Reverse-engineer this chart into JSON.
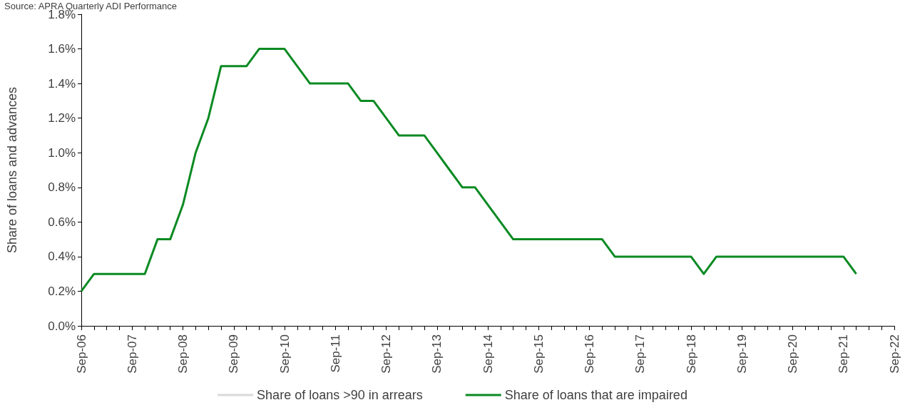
{
  "chart_data": {
    "type": "line",
    "ylabel": "Share of loans and advances",
    "annotations": [
      "Source: APRA Quarterly ADI Performance"
    ],
    "categories": [
      "Sep-06",
      null,
      null,
      null,
      "Sep-07",
      null,
      null,
      null,
      "Sep-08",
      null,
      null,
      null,
      "Sep-09",
      null,
      null,
      null,
      "Sep-10",
      null,
      null,
      null,
      "Sep-11",
      null,
      null,
      null,
      "Sep-12",
      null,
      null,
      null,
      "Sep-13",
      null,
      null,
      null,
      "Sep-14",
      null,
      null,
      null,
      "Sep-15",
      null,
      null,
      null,
      "Sep-16",
      null,
      null,
      null,
      "Sep-17",
      null,
      null,
      null,
      "Sep-18",
      null,
      null,
      null,
      "Sep-19",
      null,
      null,
      null,
      "Sep-20",
      null,
      null,
      null,
      "Sep-21",
      null,
      null,
      null,
      "Sep-22"
    ],
    "series": [
      {
        "name": "Share of loans >90 in arrears",
        "color": "#d9d9d9",
        "values": [
          null,
          null,
          null,
          null,
          null,
          null,
          null,
          null,
          null,
          null,
          null,
          null,
          null,
          null,
          null,
          null,
          null,
          null,
          null,
          null,
          null,
          null,
          null,
          null,
          null,
          null,
          null,
          null,
          null,
          null,
          null,
          null,
          null,
          null,
          null,
          null,
          null,
          null,
          null,
          null,
          null,
          null,
          null,
          null,
          null,
          null,
          null,
          null,
          null,
          null,
          null,
          null,
          null,
          null,
          null,
          null,
          null,
          null,
          null,
          null,
          null,
          null,
          null,
          null,
          null
        ]
      },
      {
        "name": "Share of loans that are impaired",
        "color": "#0a8a22",
        "values": [
          0.2,
          0.3,
          0.3,
          0.3,
          0.3,
          0.3,
          0.5,
          0.5,
          0.7,
          1.0,
          1.2,
          1.5,
          1.5,
          1.5,
          1.6,
          1.6,
          1.6,
          1.5,
          1.4,
          1.4,
          1.4,
          1.4,
          1.3,
          1.3,
          1.2,
          1.1,
          1.1,
          1.1,
          1.0,
          0.9,
          0.8,
          0.8,
          0.7,
          0.6,
          0.5,
          0.5,
          0.5,
          0.5,
          0.5,
          0.5,
          0.5,
          0.5,
          0.4,
          0.4,
          0.4,
          0.4,
          0.4,
          0.4,
          0.4,
          0.3,
          0.4,
          0.4,
          0.4,
          0.4,
          0.4,
          0.4,
          0.4,
          0.4,
          0.4,
          0.4,
          0.4,
          0.3,
          null,
          null,
          null
        ]
      }
    ],
    "ylim": [
      0,
      1.8
    ],
    "yticks": [
      {
        "value": 0,
        "label": "0.0%"
      },
      {
        "value": 0.2,
        "label": "0.2%"
      },
      {
        "value": 0.4,
        "label": "0.4%"
      },
      {
        "value": 0.6,
        "label": "0.6%"
      },
      {
        "value": 0.8,
        "label": "0.8%"
      },
      {
        "value": 1.0,
        "label": "1.0%"
      },
      {
        "value": 1.2,
        "label": "1.2%"
      },
      {
        "value": 1.4,
        "label": "1.4%"
      },
      {
        "value": 1.6,
        "label": "1.6%"
      },
      {
        "value": 1.8,
        "label": "1.8%"
      }
    ],
    "legend": "bottom"
  }
}
